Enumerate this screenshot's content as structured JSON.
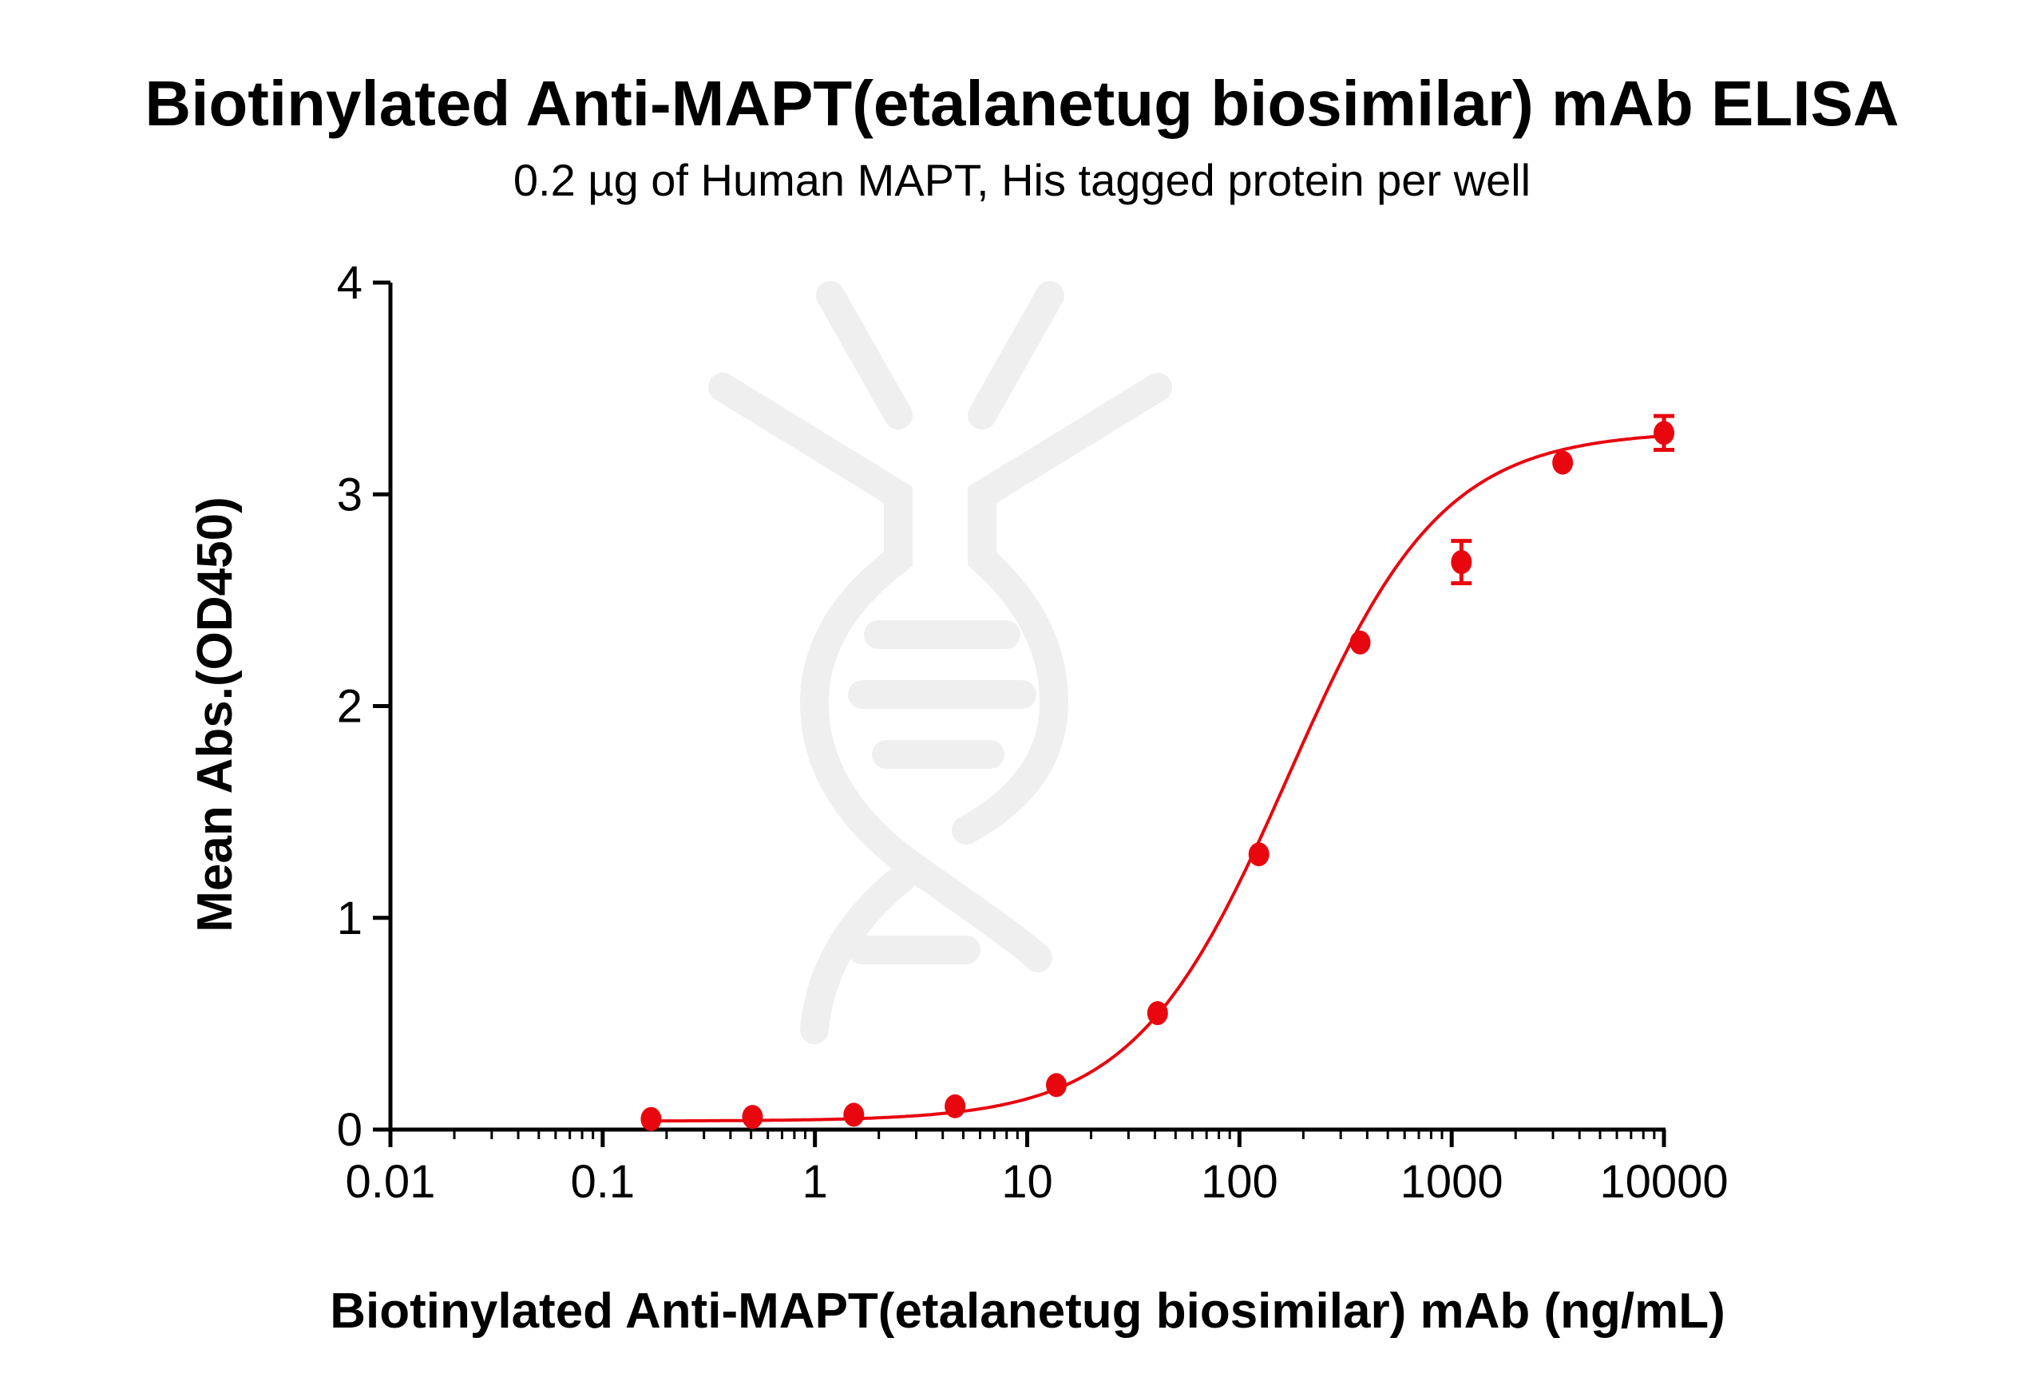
{
  "chart_data": {
    "type": "scatter",
    "title": "Biotinylated Anti-MAPT(etalanetug biosimilar) mAb ELISA",
    "subtitle": "0.2 µg of Human MAPT, His tagged protein per well",
    "xlabel": "Biotinylated Anti-MAPT(etalanetug biosimilar) mAb (ng/mL)",
    "ylabel": "Mean Abs.(OD450)",
    "xscale": "log",
    "xlim": [
      0.01,
      10000
    ],
    "ylim": [
      0,
      4
    ],
    "xticks": [
      "0.01",
      "0.1",
      "1",
      "10",
      "100",
      "1000",
      "10000"
    ],
    "yticks": [
      "0",
      "1",
      "2",
      "3",
      "4"
    ],
    "grid": false,
    "color": "#e8070f",
    "x": [
      0.169,
      0.508,
      1.524,
      4.572,
      13.72,
      41.15,
      123.5,
      370.4,
      1111,
      3333,
      10000
    ],
    "y": [
      0.05,
      0.06,
      0.07,
      0.11,
      0.21,
      0.55,
      1.3,
      2.3,
      2.68,
      3.15,
      3.29
    ],
    "error": [
      0,
      0,
      0,
      0,
      0,
      0,
      0,
      0,
      0.1,
      0.02,
      0.08
    ],
    "fit": {
      "model": "4PL",
      "bottom": 0.04,
      "top": 3.3,
      "ec50": 170,
      "hill": 1.2
    }
  }
}
